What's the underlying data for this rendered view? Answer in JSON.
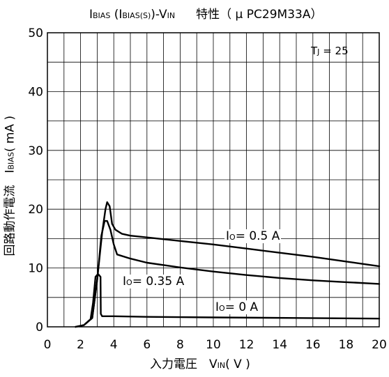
{
  "title": {
    "main_prefix": "I",
    "main_sub": "BIAS",
    "paren_open": " (I",
    "paren_sub": "BIAS(S)",
    "paren_close": ")-V",
    "vin_sub": "IN",
    "suffix": "特性（ μ PC29M33A）"
  },
  "ylabel": {
    "prefix": "回路動作電流　I",
    "sub": "BIAS",
    "suffix": "( mA )"
  },
  "xlabel": {
    "prefix": "入力電圧　V",
    "sub": "IN",
    "suffix": "( V )"
  },
  "condition": {
    "prefix": "T",
    "sub": "J",
    "suffix": " = 25"
  },
  "annotations": [
    {
      "prefix": "I",
      "sub": "O",
      "suffix": "= 0.5 A"
    },
    {
      "prefix": "I",
      "sub": "O",
      "suffix": "= 0.35 A"
    },
    {
      "prefix": "I",
      "sub": "O",
      "suffix": "= 0 A"
    }
  ],
  "chart_data": {
    "type": "line",
    "xlim": [
      0,
      20
    ],
    "ylim": [
      0,
      50
    ],
    "x_ticks": [
      "0",
      "2",
      "4",
      "6",
      "8",
      "10",
      "12",
      "14",
      "16",
      "18",
      "20"
    ],
    "y_ticks": [
      "0",
      "10",
      "20",
      "30",
      "40",
      "50"
    ],
    "grid": true,
    "series": [
      {
        "name": "IO = 0.5 A",
        "points": [
          [
            1.7,
            0
          ],
          [
            2.2,
            0.3
          ],
          [
            2.7,
            1.5
          ],
          [
            3.0,
            8
          ],
          [
            3.3,
            16
          ],
          [
            3.5,
            20
          ],
          [
            3.6,
            21.2
          ],
          [
            3.75,
            20.5
          ],
          [
            3.9,
            17.5
          ],
          [
            4.1,
            16.5
          ],
          [
            4.5,
            15.8
          ],
          [
            5.0,
            15.5
          ],
          [
            6.0,
            15.2
          ],
          [
            8.0,
            14.6
          ],
          [
            10.0,
            14.0
          ],
          [
            12.0,
            13.3
          ],
          [
            14.0,
            12.6
          ],
          [
            16.0,
            11.9
          ],
          [
            18.0,
            11.1
          ],
          [
            20.0,
            10.3
          ]
        ]
      },
      {
        "name": "IO = 0.35 A",
        "points": [
          [
            1.7,
            0
          ],
          [
            2.2,
            0.3
          ],
          [
            2.7,
            1.5
          ],
          [
            3.0,
            8
          ],
          [
            3.25,
            15.5
          ],
          [
            3.45,
            18.0
          ],
          [
            3.6,
            18.0
          ],
          [
            3.8,
            16.5
          ],
          [
            4.0,
            14.0
          ],
          [
            4.2,
            12.3
          ],
          [
            5.0,
            11.6
          ],
          [
            6.0,
            10.9
          ],
          [
            8.0,
            10.1
          ],
          [
            10.0,
            9.4
          ],
          [
            12.0,
            8.8
          ],
          [
            14.0,
            8.3
          ],
          [
            16.0,
            7.9
          ],
          [
            18.0,
            7.6
          ],
          [
            20.0,
            7.3
          ]
        ]
      },
      {
        "name": "IO = 0 A",
        "points": [
          [
            1.7,
            0
          ],
          [
            2.2,
            0.3
          ],
          [
            2.6,
            1.3
          ],
          [
            2.75,
            4
          ],
          [
            2.9,
            8.5
          ],
          [
            3.05,
            9.0
          ],
          [
            3.2,
            8.5
          ],
          [
            3.22,
            2.2
          ],
          [
            3.3,
            1.8
          ],
          [
            4.0,
            1.8
          ],
          [
            6.0,
            1.7
          ],
          [
            10.0,
            1.6
          ],
          [
            15.0,
            1.5
          ],
          [
            20.0,
            1.4
          ]
        ]
      }
    ]
  }
}
